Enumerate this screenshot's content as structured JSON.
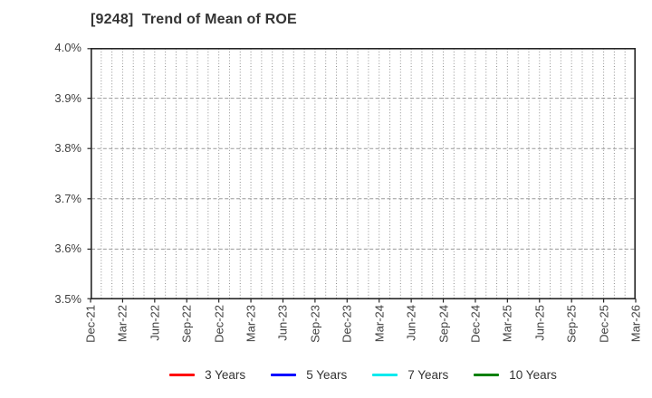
{
  "header": {
    "title": "[9248]  Trend of Mean of ROE"
  },
  "chart_data": {
    "type": "line",
    "title": "[9248]  Trend of Mean of ROE",
    "xlabel": "",
    "ylabel": "",
    "ylim": [
      3.5,
      4.0
    ],
    "y_ticks": [
      3.5,
      3.6,
      3.7,
      3.8,
      3.9,
      4.0
    ],
    "y_tick_labels": [
      "3.5%",
      "3.6%",
      "3.7%",
      "3.8%",
      "3.9%",
      "4.0%"
    ],
    "x_tick_labels": [
      "Dec-21",
      "Mar-22",
      "Jun-22",
      "Sep-22",
      "Dec-22",
      "Mar-23",
      "Jun-23",
      "Sep-23",
      "Dec-23",
      "Mar-24",
      "Jun-24",
      "Sep-24",
      "Dec-24",
      "Mar-25",
      "Jun-25",
      "Sep-25",
      "Dec-25",
      "Mar-26"
    ],
    "x_minor_gridlines_per_interval": 3,
    "grid": "on",
    "legend_position": "bottom-center",
    "series": [
      {
        "name": "3 Years",
        "color": "#ff0000",
        "values": []
      },
      {
        "name": "5 Years",
        "color": "#0000ff",
        "values": []
      },
      {
        "name": "7 Years",
        "color": "#00eaee",
        "values": []
      },
      {
        "name": "10 Years",
        "color": "#008000",
        "values": []
      }
    ]
  },
  "colors": {
    "background": "#ffffff",
    "axis_frame": "#262626",
    "grid_vertical": "#8f8f8f",
    "grid_horizontal": "#999999",
    "tick_label": "#404040",
    "title_text": "#333333",
    "legend_text": "#333333"
  }
}
